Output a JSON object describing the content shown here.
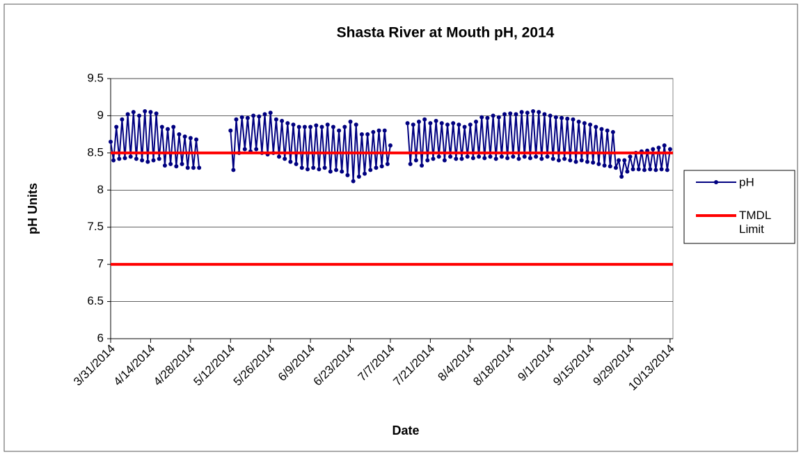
{
  "chart_data": {
    "type": "line",
    "title": "Shasta River at Mouth pH, 2014",
    "xlabel": "Date",
    "ylabel": "pH Units",
    "x": [
      "3/31/2014",
      "4/1/2014",
      "4/2/2014",
      "4/3/2014",
      "4/4/2014",
      "4/5/2014",
      "4/6/2014",
      "4/7/2014",
      "4/8/2014",
      "4/9/2014",
      "4/10/2014",
      "4/11/2014",
      "4/12/2014",
      "4/13/2014",
      "4/14/2014",
      "4/15/2014",
      "4/16/2014",
      "4/17/2014",
      "4/18/2014",
      "4/19/2014",
      "4/20/2014",
      "4/21/2014",
      "4/22/2014",
      "4/23/2014",
      "4/24/2014",
      "4/25/2014",
      "4/26/2014",
      "4/27/2014",
      "4/28/2014",
      "4/29/2014",
      "4/30/2014",
      "5/1/2014",
      "5/2/2014",
      "5/3/2014",
      "5/4/2014",
      "5/5/2014",
      "5/6/2014",
      "5/7/2014",
      "5/8/2014",
      "5/9/2014",
      "5/10/2014",
      "5/11/2014",
      "5/12/2014",
      "5/13/2014",
      "5/14/2014",
      "5/15/2014",
      "5/16/2014",
      "5/17/2014",
      "5/18/2014",
      "5/19/2014",
      "5/20/2014",
      "5/21/2014",
      "5/22/2014",
      "5/23/2014",
      "5/24/2014",
      "5/25/2014",
      "5/26/2014",
      "5/27/2014",
      "5/28/2014",
      "5/29/2014",
      "5/30/2014",
      "5/31/2014",
      "6/1/2014",
      "6/2/2014",
      "6/3/2014",
      "6/4/2014",
      "6/5/2014",
      "6/6/2014",
      "6/7/2014",
      "6/8/2014",
      "6/9/2014",
      "6/10/2014",
      "6/11/2014",
      "6/12/2014",
      "6/13/2014",
      "6/14/2014",
      "6/15/2014",
      "6/16/2014",
      "6/17/2014",
      "6/18/2014",
      "6/19/2014",
      "6/20/2014",
      "6/21/2014",
      "6/22/2014",
      "6/23/2014",
      "6/24/2014",
      "6/25/2014",
      "6/26/2014",
      "6/27/2014",
      "6/28/2014",
      "6/29/2014",
      "6/30/2014",
      "7/1/2014",
      "7/2/2014",
      "7/3/2014",
      "7/4/2014",
      "7/5/2014",
      "7/6/2014",
      "7/7/2014",
      "7/8/2014",
      "7/9/2014",
      "7/10/2014",
      "7/11/2014",
      "7/12/2014",
      "7/13/2014",
      "7/14/2014",
      "7/15/2014",
      "7/16/2014",
      "7/17/2014",
      "7/18/2014",
      "7/19/2014",
      "7/20/2014",
      "7/21/2014",
      "7/22/2014",
      "7/23/2014",
      "7/24/2014",
      "7/25/2014",
      "7/26/2014",
      "7/27/2014",
      "7/28/2014",
      "7/29/2014",
      "7/30/2014",
      "7/31/2014",
      "8/1/2014",
      "8/2/2014",
      "8/3/2014",
      "8/4/2014",
      "8/5/2014",
      "8/6/2014",
      "8/7/2014",
      "8/8/2014",
      "8/9/2014",
      "8/10/2014",
      "8/11/2014",
      "8/12/2014",
      "8/13/2014",
      "8/14/2014",
      "8/15/2014",
      "8/16/2014",
      "8/17/2014",
      "8/18/2014",
      "8/19/2014",
      "8/20/2014",
      "8/21/2014",
      "8/22/2014",
      "8/23/2014",
      "8/24/2014",
      "8/25/2014",
      "8/26/2014",
      "8/27/2014",
      "8/28/2014",
      "8/29/2014",
      "8/30/2014",
      "8/31/2014",
      "9/1/2014",
      "9/2/2014",
      "9/3/2014",
      "9/4/2014",
      "9/5/2014",
      "9/6/2014",
      "9/7/2014",
      "9/8/2014",
      "9/9/2014",
      "9/10/2014",
      "9/11/2014",
      "9/12/2014",
      "9/13/2014",
      "9/14/2014",
      "9/15/2014",
      "9/16/2014",
      "9/17/2014",
      "9/18/2014",
      "9/19/2014",
      "9/20/2014",
      "9/21/2014",
      "9/22/2014",
      "9/23/2014",
      "9/24/2014",
      "9/25/2014",
      "9/26/2014",
      "9/27/2014",
      "9/28/2014",
      "9/29/2014",
      "9/30/2014",
      "10/1/2014",
      "10/2/2014",
      "10/3/2014",
      "10/4/2014",
      "10/5/2014",
      "10/6/2014",
      "10/7/2014",
      "10/8/2014",
      "10/9/2014",
      "10/10/2014",
      "10/11/2014",
      "10/12/2014",
      "10/13/2014"
    ],
    "series": [
      {
        "name": "pH",
        "color": "#000080",
        "values": [
          8.65,
          8.4,
          8.85,
          8.42,
          8.95,
          8.43,
          9.02,
          8.45,
          9.05,
          8.42,
          9.0,
          8.4,
          9.06,
          8.38,
          9.05,
          8.4,
          9.03,
          8.42,
          8.85,
          8.33,
          8.82,
          8.35,
          8.85,
          8.32,
          8.75,
          8.35,
          8.72,
          8.3,
          8.7,
          8.3,
          8.68,
          8.3,
          null,
          null,
          null,
          null,
          null,
          null,
          null,
          null,
          null,
          null,
          8.8,
          8.27,
          8.95,
          8.5,
          8.98,
          8.55,
          8.97,
          8.52,
          9.0,
          8.55,
          8.99,
          8.5,
          9.02,
          8.48,
          9.04,
          8.5,
          8.95,
          8.45,
          8.93,
          8.42,
          8.9,
          8.38,
          8.88,
          8.35,
          8.85,
          8.3,
          8.85,
          8.28,
          8.85,
          8.3,
          8.87,
          8.28,
          8.85,
          8.3,
          8.88,
          8.25,
          8.85,
          8.27,
          8.8,
          8.25,
          8.85,
          8.2,
          8.92,
          8.12,
          8.88,
          8.18,
          8.75,
          8.22,
          8.75,
          8.27,
          8.78,
          8.3,
          8.8,
          8.32,
          8.8,
          8.35,
          8.6,
          null,
          null,
          null,
          null,
          null,
          8.9,
          8.35,
          8.88,
          8.4,
          8.92,
          8.33,
          8.95,
          8.4,
          8.9,
          8.42,
          8.93,
          8.45,
          8.9,
          8.4,
          8.88,
          8.45,
          8.9,
          8.42,
          8.88,
          8.42,
          8.85,
          8.45,
          8.88,
          8.43,
          8.92,
          8.45,
          8.98,
          8.43,
          8.97,
          8.45,
          9.0,
          8.42,
          8.98,
          8.45,
          9.02,
          8.43,
          9.03,
          8.45,
          9.02,
          8.42,
          9.05,
          8.45,
          9.04,
          8.43,
          9.06,
          8.45,
          9.05,
          8.42,
          9.02,
          8.45,
          9.0,
          8.42,
          8.98,
          8.4,
          8.97,
          8.42,
          8.96,
          8.4,
          8.95,
          8.38,
          8.92,
          8.4,
          8.9,
          8.38,
          8.88,
          8.37,
          8.85,
          8.35,
          8.82,
          8.33,
          8.8,
          8.32,
          8.78,
          8.3,
          8.4,
          8.18,
          8.4,
          8.25,
          8.45,
          8.28,
          8.5,
          8.28,
          8.52,
          8.27,
          8.53,
          8.28,
          8.55,
          8.27,
          8.57,
          8.28,
          8.6,
          8.27,
          8.55
        ]
      }
    ],
    "reference_lines": {
      "name": "TMDL Limit",
      "color": "#ff0000",
      "values": [
        8.5,
        7
      ]
    },
    "xlim": [
      "3/31/2014",
      "10/14/2014"
    ],
    "xticks": [
      "3/31/2014",
      "4/14/2014",
      "4/28/2014",
      "5/12/2014",
      "5/26/2014",
      "6/9/2014",
      "6/23/2014",
      "7/7/2014",
      "7/21/2014",
      "8/4/2014",
      "8/18/2014",
      "9/1/2014",
      "9/15/2014",
      "9/29/2014",
      "10/13/2014"
    ],
    "ylim": [
      6,
      9.5
    ],
    "yticks": [
      6,
      6.5,
      7,
      7.5,
      8,
      8.5,
      9,
      9.5
    ],
    "grid": true,
    "legend": "right"
  }
}
